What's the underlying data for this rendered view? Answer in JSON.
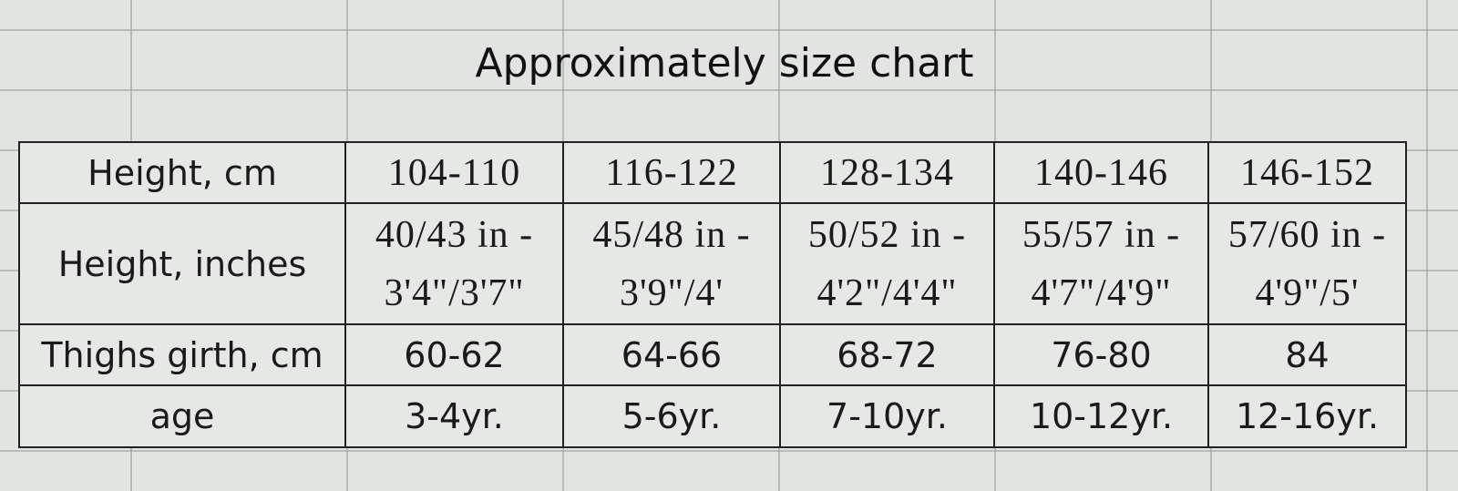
{
  "title": "Approximately size chart",
  "table": {
    "rows": [
      {
        "label": "Height, cm",
        "cells": [
          "104-110",
          "116-122",
          "128-134",
          "140-146",
          "146-152"
        ]
      },
      {
        "label": "Height, inches",
        "cells": [
          [
            "40/43 in -",
            "3'4\"/3'7\""
          ],
          [
            "45/48 in -",
            "3'9\"/4'"
          ],
          [
            "50/52 in -",
            "4'2\"/4'4\""
          ],
          [
            "55/57 in -",
            "4'7\"/4'9\""
          ],
          [
            "57/60 in -",
            "4'9\"/5'"
          ]
        ]
      },
      {
        "label": "Thighs girth, cm",
        "cells": [
          "60-62",
          "64-66",
          "68-72",
          "76-80",
          "84"
        ]
      },
      {
        "label": "age",
        "cells": [
          "3-4yr.",
          "5-6yr.",
          "7-10yr.",
          "10-12yr.",
          "12-16yr."
        ]
      }
    ]
  }
}
